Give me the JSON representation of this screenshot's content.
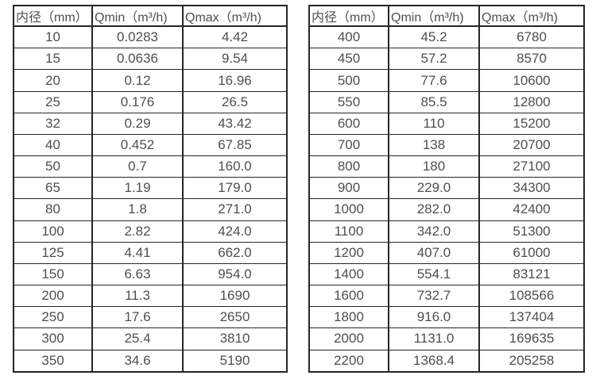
{
  "colors": {
    "background": "#ffffff",
    "border": "#262626",
    "text": "#4f4f4f"
  },
  "tables": [
    {
      "name": "flow-rate-table-small-diameters",
      "headers": [
        "内径（mm）",
        "Qmin（m³/h)",
        "Qmax（m³/h)"
      ],
      "rows": [
        [
          "10",
          "0.0283",
          "4.42"
        ],
        [
          "15",
          "0.0636",
          "9.54"
        ],
        [
          "20",
          "0.12",
          "16.96"
        ],
        [
          "25",
          "0.176",
          "26.5"
        ],
        [
          "32",
          "0.29",
          "43.42"
        ],
        [
          "40",
          "0.452",
          "67.85"
        ],
        [
          "50",
          "0.7",
          "160.0"
        ],
        [
          "65",
          "1.19",
          "179.0"
        ],
        [
          "80",
          "1.8",
          "271.0"
        ],
        [
          "100",
          "2.82",
          "424.0"
        ],
        [
          "125",
          "4.41",
          "662.0"
        ],
        [
          "150",
          "6.63",
          "954.0"
        ],
        [
          "200",
          "11.3",
          "1690"
        ],
        [
          "250",
          "17.6",
          "2650"
        ],
        [
          "300",
          "25.4",
          "3810"
        ],
        [
          "350",
          "34.6",
          "5190"
        ]
      ]
    },
    {
      "name": "flow-rate-table-large-diameters",
      "headers": [
        "内径（mm）",
        "Qmin（m³/h)",
        "Qmax（m³/h)"
      ],
      "rows": [
        [
          "400",
          "45.2",
          "6780"
        ],
        [
          "450",
          "57.2",
          "8570"
        ],
        [
          "500",
          "77.6",
          "10600"
        ],
        [
          "550",
          "85.5",
          "12800"
        ],
        [
          "600",
          "110",
          "15200"
        ],
        [
          "700",
          "138",
          "20700"
        ],
        [
          "800",
          "180",
          "27100"
        ],
        [
          "900",
          "229.0",
          "34300"
        ],
        [
          "1000",
          "282.0",
          "42400"
        ],
        [
          "1100",
          "342.0",
          "51300"
        ],
        [
          "1200",
          "407.0",
          "61000"
        ],
        [
          "1400",
          "554.1",
          "83121"
        ],
        [
          "1600",
          "732.7",
          "108566"
        ],
        [
          "1800",
          "916.0",
          "137404"
        ],
        [
          "2000",
          "1131.0",
          "169635"
        ],
        [
          "2200",
          "1368.4",
          "205258"
        ]
      ]
    }
  ]
}
